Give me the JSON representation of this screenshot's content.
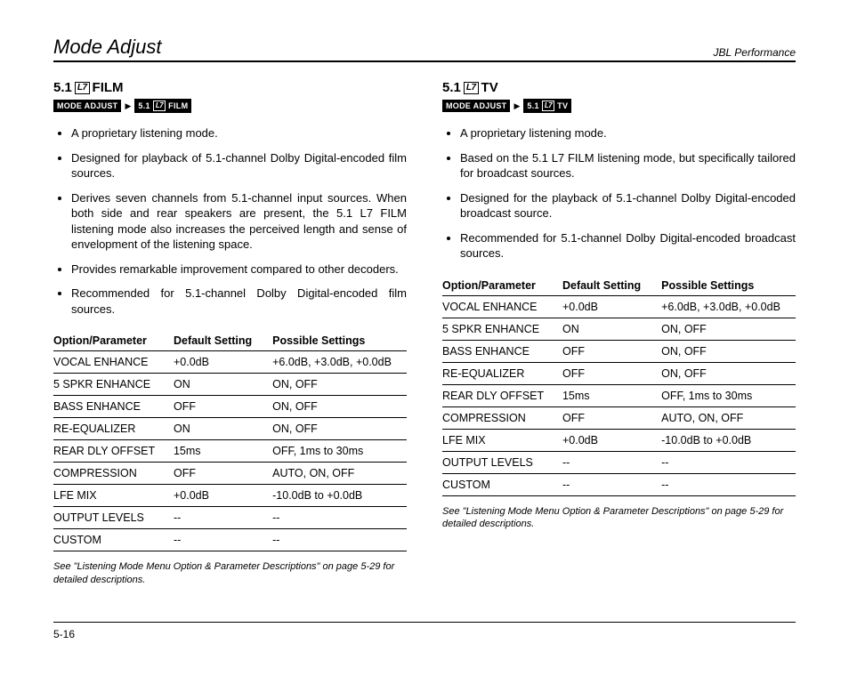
{
  "header": {
    "title": "Mode Adjust",
    "brand": "JBL Performance"
  },
  "left": {
    "heading_prefix": "5.1",
    "heading_badge": "L7",
    "heading_suffix": "FILM",
    "breadcrumb_main": "MODE ADJUST",
    "breadcrumb_sub_prefix": "5.1",
    "breadcrumb_sub_suffix": "FILM",
    "bullets": [
      "A proprietary listening mode.",
      "Designed for playback of 5.1-channel Dolby Digital-encoded film sources.",
      "Derives seven channels from 5.1-channel input sources. When both side and rear speakers are present, the 5.1 L7 FILM listening mode also increases the perceived length and sense of envelopment of the listening space.",
      "Provides remarkable improvement compared to other decoders.",
      "Recommended for 5.1-channel Dolby Digital-encoded film sources."
    ],
    "table": {
      "headers": [
        "Option/Parameter",
        "Default Setting",
        "Possible Settings"
      ],
      "rows": [
        [
          "VOCAL ENHANCE",
          "+0.0dB",
          "+6.0dB, +3.0dB, +0.0dB"
        ],
        [
          "5 SPKR ENHANCE",
          "ON",
          "ON, OFF"
        ],
        [
          "BASS ENHANCE",
          "OFF",
          "ON, OFF"
        ],
        [
          "RE-EQUALIZER",
          "ON",
          "ON, OFF"
        ],
        [
          "REAR DLY OFFSET",
          "15ms",
          "OFF, 1ms to 30ms"
        ],
        [
          "COMPRESSION",
          "OFF",
          "AUTO, ON, OFF"
        ],
        [
          "LFE MIX",
          "+0.0dB",
          "-10.0dB to +0.0dB"
        ],
        [
          "OUTPUT LEVELS",
          "--",
          "--"
        ],
        [
          "CUSTOM",
          "--",
          "--"
        ]
      ]
    },
    "caption": "See \"Listening Mode Menu Option & Parameter Descriptions\" on page 5-29 for detailed descriptions."
  },
  "right": {
    "heading_prefix": "5.1",
    "heading_badge": "L7",
    "heading_suffix": "TV",
    "breadcrumb_main": "MODE ADJUST",
    "breadcrumb_sub_prefix": "5.1",
    "breadcrumb_sub_suffix": "TV",
    "bullets": [
      "A proprietary listening mode.",
      "Based on the 5.1 L7 FILM listening mode, but specifically tailored for broadcast sources.",
      "Designed for the playback of 5.1-channel Dolby Digital-encoded broadcast source.",
      "Recommended for 5.1-channel Dolby Digital-encoded broadcast sources."
    ],
    "table": {
      "headers": [
        "Option/Parameter",
        "Default Setting",
        "Possible Settings"
      ],
      "rows": [
        [
          "VOCAL ENHANCE",
          "+0.0dB",
          "+6.0dB, +3.0dB, +0.0dB"
        ],
        [
          "5 SPKR ENHANCE",
          "ON",
          "ON, OFF"
        ],
        [
          "BASS ENHANCE",
          "OFF",
          "ON, OFF"
        ],
        [
          "RE-EQUALIZER",
          "OFF",
          "ON, OFF"
        ],
        [
          "REAR DLY OFFSET",
          "15ms",
          "OFF, 1ms to 30ms"
        ],
        [
          "COMPRESSION",
          "OFF",
          "AUTO, ON, OFF"
        ],
        [
          "LFE MIX",
          "+0.0dB",
          "-10.0dB to +0.0dB"
        ],
        [
          "OUTPUT LEVELS",
          "--",
          "--"
        ],
        [
          "CUSTOM",
          "--",
          "--"
        ]
      ]
    },
    "caption": "See \"Listening Mode Menu Option & Parameter Descriptions\" on page 5-29 for detailed descriptions."
  },
  "footer": {
    "page": "5-16"
  }
}
